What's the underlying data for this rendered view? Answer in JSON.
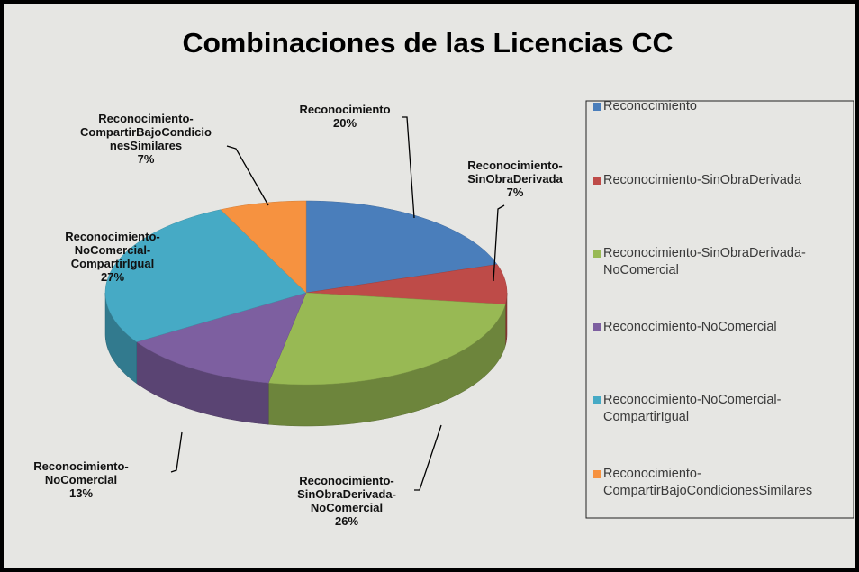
{
  "chart_data": {
    "type": "pie3d",
    "title": "Combinaciones de las Licencias CC",
    "categories": [
      "Reconocimiento",
      "Reconocimiento-SinObraDerivada",
      "Reconocimiento-SinObraDerivada-NoComercial",
      "Reconocimiento-NoComercial",
      "Reconocimiento-NoComercial-CompartirIgual",
      "Reconocimiento-CompartirBajoCondicionesSimilares"
    ],
    "values": [
      20,
      7,
      26,
      13,
      27,
      7
    ],
    "value_labels": [
      "20%",
      "7%",
      "26%",
      "13%",
      "27%",
      "7%"
    ],
    "colors": [
      "#4a7ebb",
      "#be4b48",
      "#98b954",
      "#7d5fa0",
      "#46aac5",
      "#f69240"
    ],
    "legend": "right"
  }
}
